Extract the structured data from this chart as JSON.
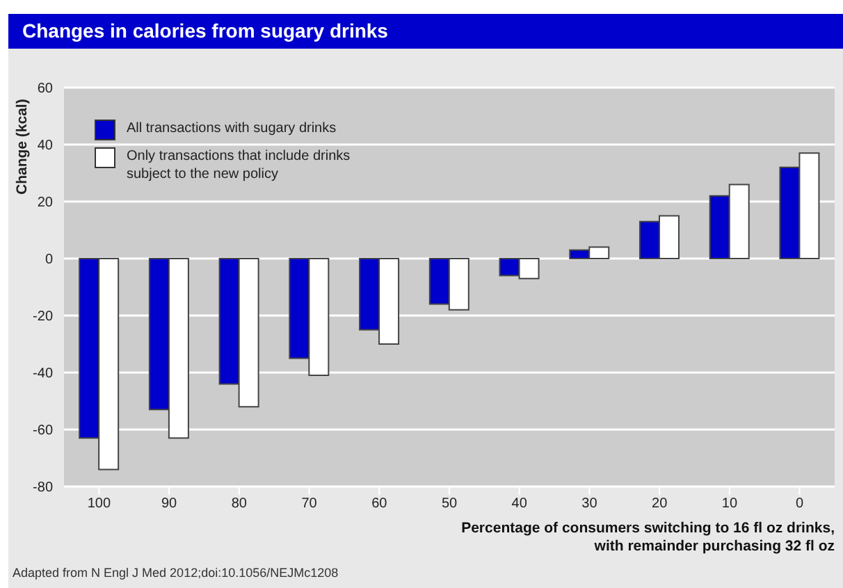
{
  "chart_data": {
    "type": "bar",
    "title": "Changes in calories from sugary drinks",
    "xlabel": "Percentage of consumers switching to 16 fl oz drinks, with remainder purchasing 32 fl oz",
    "ylabel": "Change (kcal)",
    "categories": [
      "100",
      "90",
      "80",
      "70",
      "60",
      "50",
      "40",
      "30",
      "20",
      "10",
      "0"
    ],
    "series": [
      {
        "name": "All transactions with sugary drinks",
        "color": "#0000cc",
        "values": [
          -63,
          -53,
          -44,
          -35,
          -25,
          -16,
          -6,
          3,
          13,
          22,
          32
        ]
      },
      {
        "name": "Only transactions that include drinks subject to the new policy",
        "color": "#ffffff",
        "values": [
          -74,
          -63,
          -52,
          -41,
          -30,
          -18,
          -7,
          4,
          15,
          26,
          37
        ]
      }
    ],
    "ylim": [
      -80,
      60
    ],
    "yticks": [
      -80,
      -60,
      -40,
      -20,
      0,
      20,
      40,
      60
    ],
    "grid": "y",
    "legend": "top left",
    "annotations": [
      "Adapted from N Engl J Med 2012;doi:10.1056/NEJMc1208"
    ]
  }
}
